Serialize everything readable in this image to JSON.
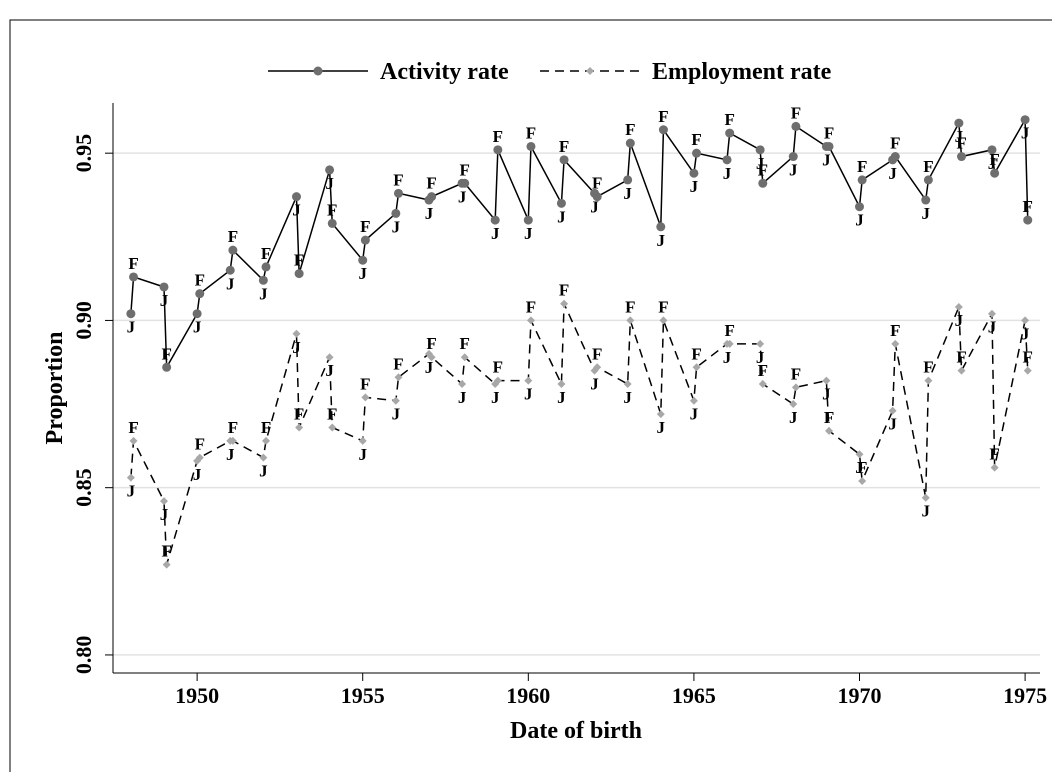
{
  "chart_data": {
    "type": "line",
    "xlabel": "Date of birth",
    "ylabel": "Proportion",
    "x": [
      1948,
      1948.08,
      1949,
      1949.08,
      1950,
      1950.08,
      1951,
      1951.08,
      1952,
      1952.08,
      1953,
      1953.08,
      1954,
      1954.08,
      1955,
      1955.08,
      1956,
      1956.08,
      1957,
      1957.08,
      1958,
      1958.08,
      1959,
      1959.08,
      1960,
      1960.08,
      1961,
      1961.08,
      1962,
      1962.08,
      1963,
      1963.08,
      1964,
      1964.08,
      1965,
      1965.08,
      1966,
      1966.08,
      1967,
      1967.08,
      1968,
      1968.08,
      1969,
      1969.08,
      1970,
      1970.08,
      1971,
      1971.08,
      1972,
      1972.08,
      1973,
      1973.08,
      1974,
      1974.08,
      1975,
      1975.08
    ],
    "series": [
      {
        "name": "Activity rate",
        "color": "#6e6e6e",
        "line_color": "#000000",
        "dash": "solid",
        "marker": "circle",
        "values": [
          0.902,
          0.913,
          0.91,
          0.886,
          0.902,
          0.908,
          0.915,
          0.921,
          0.912,
          0.916,
          0.937,
          0.914,
          0.945,
          0.929,
          0.918,
          0.924,
          0.932,
          0.938,
          0.936,
          0.937,
          0.941,
          0.941,
          0.93,
          0.951,
          0.93,
          0.952,
          0.935,
          0.948,
          0.938,
          0.937,
          0.942,
          0.953,
          0.928,
          0.957,
          0.944,
          0.95,
          0.948,
          0.956,
          0.951,
          0.941,
          0.949,
          0.958,
          0.952,
          0.952,
          0.934,
          0.942,
          0.948,
          0.949,
          0.936,
          0.942,
          0.959,
          0.949,
          0.951,
          0.944,
          0.96,
          0.93
        ],
        "value_labels": [
          "J",
          "F",
          "J",
          "F",
          "J",
          "F",
          "J",
          "F",
          "J",
          "F",
          "J",
          "F",
          "J",
          "F",
          "J",
          "F",
          "J",
          "F",
          "J",
          "F",
          "J",
          "F",
          "J",
          "F",
          "J",
          "F",
          "J",
          "F",
          "J",
          "F",
          "J",
          "F",
          "J",
          "F",
          "J",
          "F",
          "J",
          "F",
          "J",
          "F",
          "J",
          "F",
          "J",
          "F",
          "J",
          "F",
          "J",
          "F",
          "J",
          "F",
          "J",
          "F",
          "J",
          "F",
          "J",
          "F"
        ]
      },
      {
        "name": "Employment rate",
        "color": "#a8a8a8",
        "line_color": "#000000",
        "dash": "dashed",
        "marker": "diamond",
        "values": [
          0.853,
          0.864,
          0.846,
          0.827,
          0.858,
          0.859,
          0.864,
          0.864,
          0.859,
          0.864,
          0.896,
          0.868,
          0.889,
          0.868,
          0.864,
          0.877,
          0.876,
          0.883,
          0.89,
          0.889,
          0.881,
          0.889,
          0.881,
          0.882,
          0.882,
          0.9,
          0.881,
          0.905,
          0.885,
          0.886,
          0.881,
          0.9,
          0.872,
          0.9,
          0.876,
          0.886,
          0.893,
          0.893,
          0.893,
          0.881,
          0.875,
          0.88,
          0.882,
          0.867,
          0.86,
          0.852,
          0.873,
          0.893,
          0.847,
          0.882,
          0.904,
          0.885,
          0.902,
          0.856,
          0.9,
          0.885
        ],
        "value_labels": [
          "J",
          "F",
          "J",
          "F",
          "J",
          "F",
          "J",
          "F",
          "J",
          "F",
          "J",
          "F",
          "J",
          "F",
          "J",
          "F",
          "J",
          "F",
          "J",
          "F",
          "J",
          "F",
          "J",
          "F",
          "J",
          "F",
          "J",
          "F",
          "J",
          "F",
          "J",
          "F",
          "J",
          "F",
          "J",
          "F",
          "J",
          "F",
          "J",
          "F",
          "J",
          "F",
          "J",
          "F",
          "J",
          "F",
          "J",
          "F",
          "J",
          "F",
          "J",
          "F",
          "J",
          "F",
          "J",
          "F"
        ]
      }
    ],
    "xlim": [
      1947.46,
      1975.45
    ],
    "ylim": [
      0.7946,
      0.965
    ],
    "xticks": [
      1950,
      1955,
      1960,
      1965,
      1970,
      1975
    ],
    "yticks": [
      {
        "value": 0.8,
        "label": "0.80"
      },
      {
        "value": 0.85,
        "label": "0.85"
      },
      {
        "value": 0.9,
        "label": "0.90"
      },
      {
        "value": 0.95,
        "label": "0.95"
      }
    ],
    "grid": true,
    "legend": "top"
  }
}
